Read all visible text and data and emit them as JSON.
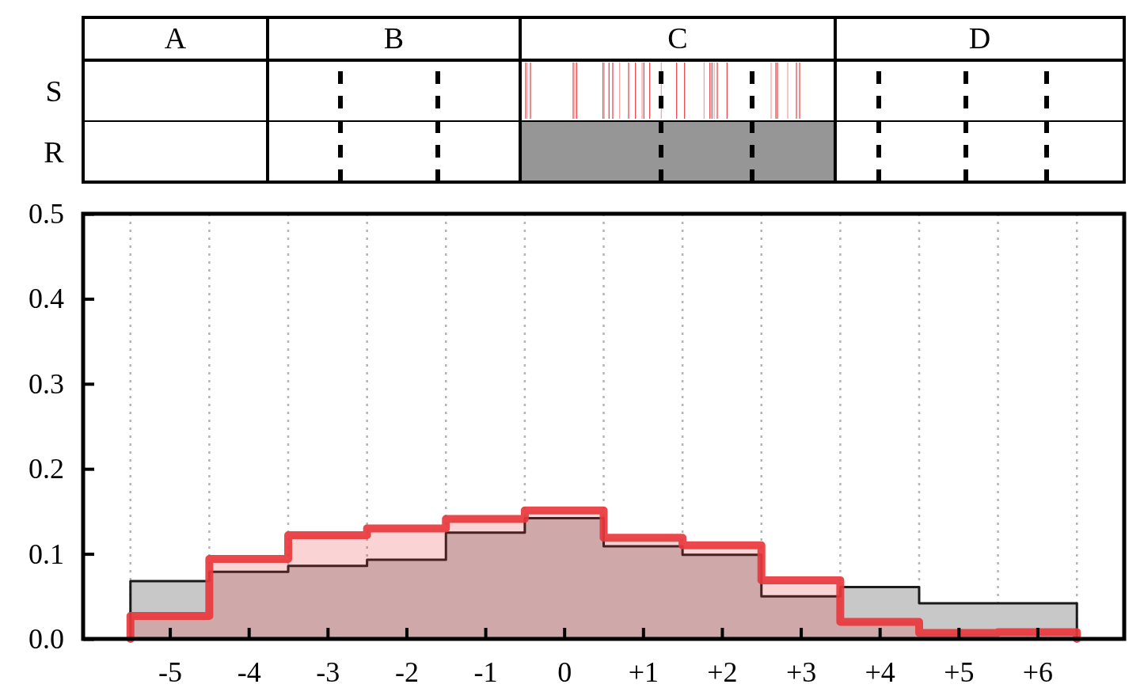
{
  "chart_data": [
    {
      "type": "other",
      "categories": [
        "A",
        "B",
        "C",
        "D"
      ],
      "y_categories": [
        "S",
        "R"
      ]
    },
    {
      "type": "histogram",
      "bins": [
        -5.5,
        -4.5,
        -3.5,
        -2.5,
        -1.5,
        -0.5,
        0.5,
        1.5,
        2.5,
        3.5,
        4.5,
        5.5,
        6.5
      ],
      "series": [
        {
          "color": "#c8c8c8",
          "values": [
            0.068,
            0.079,
            0.086,
            0.093,
            0.125,
            0.142,
            0.109,
            0.099,
            0.05,
            0.061,
            0.042,
            0.042
          ]
        },
        {
          "color": "#e8383d",
          "values": [
            0.027,
            0.094,
            0.122,
            0.13,
            0.141,
            0.151,
            0.119,
            0.11,
            0.069,
            0.02,
            0.007,
            0.008
          ]
        }
      ],
      "xlim": [
        -6.1,
        7.1
      ],
      "xticks": [
        -5,
        -4,
        -3,
        -2,
        -1,
        0,
        {
          "value": 1,
          "label": "+1"
        },
        {
          "value": 2,
          "label": "+2"
        },
        {
          "value": 3,
          "label": "+3"
        },
        {
          "value": 4,
          "label": "+4"
        },
        {
          "value": 5,
          "label": "+5"
        },
        {
          "value": 6,
          "label": "+6"
        }
      ],
      "ylim": [
        0,
        0.5
      ],
      "yticks": [
        {
          "value": 0,
          "label": "0.0"
        },
        0.1,
        0.2,
        0.3,
        0.4,
        0.5
      ],
      "ref_lines": [
        {
          "axis": "x",
          "value": -5.5,
          "color": "#b4b4b4",
          "line_style": "dotted"
        },
        {
          "axis": "x",
          "value": -4.5,
          "color": "#b4b4b4",
          "line_style": "dotted"
        },
        {
          "axis": "x",
          "value": -3.5,
          "color": "#b4b4b4",
          "line_style": "dotted"
        },
        {
          "axis": "x",
          "value": -2.5,
          "color": "#b4b4b4",
          "line_style": "dotted"
        },
        {
          "axis": "x",
          "value": -1.5,
          "color": "#b4b4b4",
          "line_style": "dotted"
        },
        {
          "axis": "x",
          "value": -0.5,
          "color": "#b4b4b4",
          "line_style": "dotted"
        },
        {
          "axis": "x",
          "value": 0.5,
          "color": "#b4b4b4",
          "line_style": "dotted"
        },
        {
          "axis": "x",
          "value": 1.5,
          "color": "#b4b4b4",
          "line_style": "dotted"
        },
        {
          "axis": "x",
          "value": 2.5,
          "color": "#b4b4b4",
          "line_style": "dotted"
        },
        {
          "axis": "x",
          "value": 3.5,
          "color": "#b4b4b4",
          "line_style": "dotted"
        },
        {
          "axis": "x",
          "value": 4.5,
          "color": "#b4b4b4",
          "line_style": "dotted"
        },
        {
          "axis": "x",
          "value": 5.5,
          "color": "#b4b4b4",
          "line_style": "dotted"
        },
        {
          "axis": "x",
          "value": 6.5,
          "color": "#b4b4b4",
          "line_style": "dotted"
        }
      ]
    }
  ]
}
